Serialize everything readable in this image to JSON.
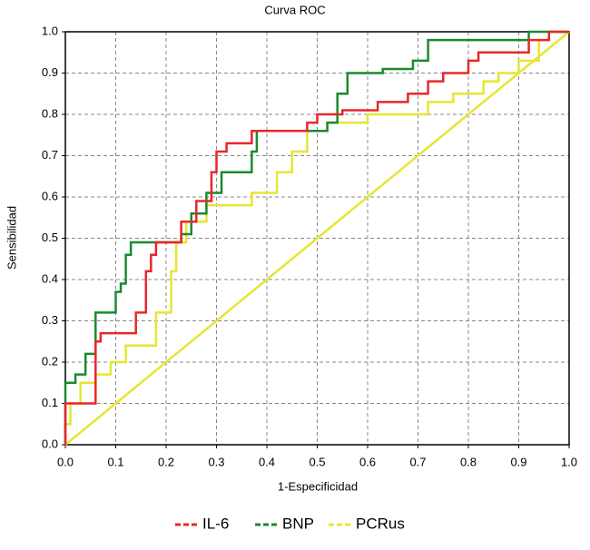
{
  "chart_data": {
    "type": "line",
    "title": "Curva ROC",
    "x_label": "1-Especificidad",
    "y_label": "Sensibilidad",
    "xlim": [
      0,
      1
    ],
    "ylim": [
      0,
      1
    ],
    "xticks": [
      {
        "value": 0,
        "label": "0.0"
      },
      0.1,
      0.2,
      0.3,
      0.4,
      0.5,
      0.6,
      0.7,
      0.8,
      0.9,
      {
        "value": 1,
        "label": "1.0"
      }
    ],
    "yticks": [
      {
        "value": 0,
        "label": "0.0"
      },
      0.1,
      0.2,
      0.3,
      0.4,
      0.5,
      0.6,
      0.7,
      0.8,
      0.9,
      {
        "value": 1,
        "label": "1.0"
      }
    ],
    "grid": true,
    "legend": "bottom",
    "series": [
      {
        "name": "IL-6",
        "color": "#e8272b",
        "x": [
          0,
          0,
          0.06,
          0.06,
          0.07,
          0.07,
          0.14,
          0.14,
          0.16,
          0.16,
          0.17,
          0.17,
          0.18,
          0.18,
          0.23,
          0.23,
          0.26,
          0.26,
          0.29,
          0.29,
          0.3,
          0.3,
          0.32,
          0.32,
          0.37,
          0.37,
          0.48,
          0.48,
          0.5,
          0.5,
          0.55,
          0.55,
          0.62,
          0.62,
          0.68,
          0.68,
          0.72,
          0.72,
          0.75,
          0.75,
          0.8,
          0.8,
          0.82,
          0.82,
          0.92,
          0.92,
          0.96,
          0.96,
          1
        ],
        "y": [
          0,
          0.1,
          0.1,
          0.25,
          0.25,
          0.27,
          0.27,
          0.32,
          0.32,
          0.42,
          0.42,
          0.46,
          0.46,
          0.49,
          0.49,
          0.54,
          0.54,
          0.59,
          0.59,
          0.66,
          0.66,
          0.71,
          0.71,
          0.73,
          0.73,
          0.76,
          0.76,
          0.78,
          0.78,
          0.8,
          0.8,
          0.81,
          0.81,
          0.83,
          0.83,
          0.85,
          0.85,
          0.88,
          0.88,
          0.9,
          0.9,
          0.93,
          0.93,
          0.95,
          0.95,
          0.98,
          0.98,
          1,
          1
        ]
      },
      {
        "name": "BNP",
        "color": "#1a8a2e",
        "x": [
          0,
          0,
          0.02,
          0.02,
          0.04,
          0.04,
          0.06,
          0.06,
          0.1,
          0.1,
          0.11,
          0.11,
          0.12,
          0.12,
          0.13,
          0.13,
          0.23,
          0.23,
          0.25,
          0.25,
          0.28,
          0.28,
          0.31,
          0.31,
          0.37,
          0.37,
          0.38,
          0.38,
          0.52,
          0.52,
          0.54,
          0.54,
          0.56,
          0.56,
          0.63,
          0.63,
          0.69,
          0.69,
          0.72,
          0.72,
          0.92,
          0.92,
          1
        ],
        "y": [
          0,
          0.15,
          0.15,
          0.17,
          0.17,
          0.22,
          0.22,
          0.32,
          0.32,
          0.37,
          0.37,
          0.39,
          0.39,
          0.46,
          0.46,
          0.49,
          0.49,
          0.51,
          0.51,
          0.56,
          0.56,
          0.61,
          0.61,
          0.66,
          0.66,
          0.71,
          0.71,
          0.76,
          0.76,
          0.78,
          0.78,
          0.85,
          0.85,
          0.9,
          0.9,
          0.91,
          0.91,
          0.93,
          0.93,
          0.98,
          0.98,
          1,
          1
        ]
      },
      {
        "name": "PCRus",
        "color": "#e6e632",
        "x": [
          0,
          0,
          0.01,
          0.01,
          0.03,
          0.03,
          0.06,
          0.06,
          0.09,
          0.09,
          0.12,
          0.12,
          0.18,
          0.18,
          0.21,
          0.21,
          0.22,
          0.22,
          0.24,
          0.24,
          0.28,
          0.28,
          0.37,
          0.37,
          0.42,
          0.42,
          0.45,
          0.45,
          0.48,
          0.48,
          0.52,
          0.52,
          0.6,
          0.6,
          0.72,
          0.72,
          0.77,
          0.77,
          0.83,
          0.83,
          0.86,
          0.86,
          0.9,
          0.9,
          0.94,
          0.94,
          0.96,
          0.96,
          1
        ],
        "y": [
          0,
          0.05,
          0.05,
          0.1,
          0.1,
          0.15,
          0.15,
          0.17,
          0.17,
          0.2,
          0.2,
          0.24,
          0.24,
          0.32,
          0.32,
          0.42,
          0.42,
          0.49,
          0.49,
          0.54,
          0.54,
          0.58,
          0.58,
          0.61,
          0.61,
          0.66,
          0.66,
          0.71,
          0.71,
          0.76,
          0.76,
          0.78,
          0.78,
          0.8,
          0.8,
          0.83,
          0.83,
          0.85,
          0.85,
          0.88,
          0.88,
          0.9,
          0.9,
          0.93,
          0.93,
          0.98,
          0.98,
          1,
          1
        ]
      }
    ]
  }
}
